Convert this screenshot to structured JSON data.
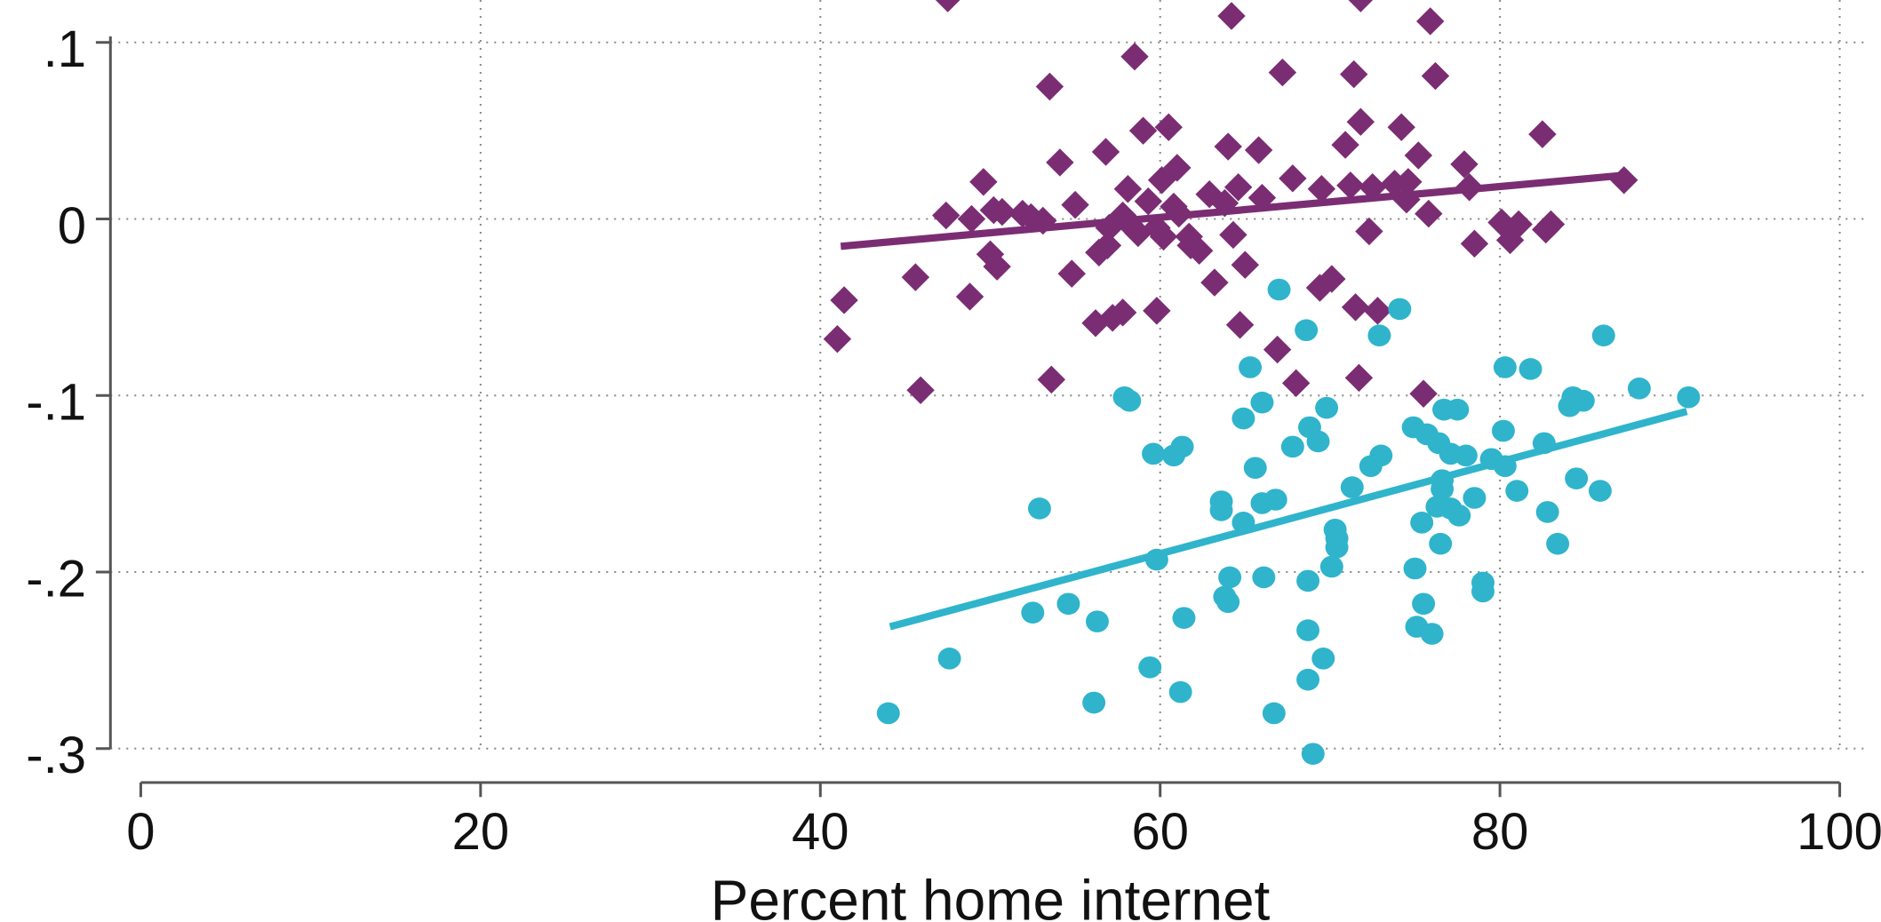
{
  "chart_data": {
    "type": "scatter",
    "title": "",
    "xlabel": "Percent home internet",
    "ylabel": "",
    "xlim": [
      0,
      100
    ],
    "ylim": [
      -0.3,
      0.1
    ],
    "x_ticks": [
      {
        "value": 0,
        "label": "0"
      },
      {
        "value": 20,
        "label": "20"
      },
      {
        "value": 40,
        "label": "40"
      },
      {
        "value": 60,
        "label": "60"
      },
      {
        "value": 80,
        "label": "80"
      },
      {
        "value": 100,
        "label": "100"
      }
    ],
    "y_ticks": [
      {
        "value": 0.1,
        "label": ".1"
      },
      {
        "value": 0,
        "label": "0"
      },
      {
        "value": -0.1,
        "label": "-.1"
      },
      {
        "value": -0.2,
        "label": "-.2"
      },
      {
        "value": -0.3,
        "label": "-.3"
      }
    ],
    "grid": true,
    "legend": "none",
    "series": [
      {
        "marker": "diamond",
        "color": "#7b2d73",
        "points": [
          [
            47.5,
            0.125
          ],
          [
            64.2,
            0.115
          ],
          [
            71.8,
            0.125
          ],
          [
            75.9,
            0.112
          ],
          [
            58.5,
            0.092
          ],
          [
            67.2,
            0.083
          ],
          [
            71.4,
            0.082
          ],
          [
            76.2,
            0.081
          ],
          [
            53.5,
            0.075
          ],
          [
            82.5,
            0.048
          ],
          [
            59.0,
            0.05
          ],
          [
            60.5,
            0.052
          ],
          [
            71.8,
            0.055
          ],
          [
            74.2,
            0.052
          ],
          [
            56.8,
            0.038
          ],
          [
            64.0,
            0.041
          ],
          [
            65.8,
            0.039
          ],
          [
            70.9,
            0.042
          ],
          [
            54.1,
            0.032
          ],
          [
            75.2,
            0.036
          ],
          [
            77.9,
            0.031
          ],
          [
            61.0,
            0.029
          ],
          [
            49.6,
            0.021
          ],
          [
            60.1,
            0.022
          ],
          [
            67.8,
            0.023
          ],
          [
            72.5,
            0.018
          ],
          [
            73.8,
            0.02
          ],
          [
            74.6,
            0.021
          ],
          [
            78.2,
            0.018
          ],
          [
            87.3,
            0.022
          ],
          [
            58.1,
            0.017
          ],
          [
            62.9,
            0.014
          ],
          [
            64.6,
            0.018
          ],
          [
            69.5,
            0.017
          ],
          [
            71.2,
            0.019
          ],
          [
            66.0,
            0.012
          ],
          [
            55.0,
            0.008
          ],
          [
            74.5,
            0.011
          ],
          [
            63.8,
            0.009
          ],
          [
            51.9,
            0.003
          ],
          [
            59.3,
            0.01
          ],
          [
            60.8,
            0.007
          ],
          [
            47.4,
            0.002
          ],
          [
            50.2,
            0.005
          ],
          [
            50.7,
            0.004
          ],
          [
            53.1,
            -0.001
          ],
          [
            57.8,
            0.002
          ],
          [
            61.1,
            0.003
          ],
          [
            75.8,
            0.003
          ],
          [
            48.9,
            0.0
          ],
          [
            52.4,
            0.001
          ],
          [
            58.2,
            -0.003
          ],
          [
            80.1,
            -0.002
          ],
          [
            81.1,
            -0.003
          ],
          [
            57.0,
            -0.005
          ],
          [
            59.8,
            -0.005
          ],
          [
            58.7,
            -0.008
          ],
          [
            60.2,
            -0.01
          ],
          [
            61.7,
            -0.01
          ],
          [
            72.3,
            -0.007
          ],
          [
            82.7,
            -0.006
          ],
          [
            83.0,
            -0.003
          ],
          [
            56.9,
            -0.015
          ],
          [
            61.8,
            -0.015
          ],
          [
            78.5,
            -0.014
          ],
          [
            80.6,
            -0.012
          ],
          [
            50.0,
            -0.02
          ],
          [
            56.4,
            -0.019
          ],
          [
            64.3,
            -0.009
          ],
          [
            50.4,
            -0.027
          ],
          [
            62.3,
            -0.018
          ],
          [
            65.0,
            -0.026
          ],
          [
            54.8,
            -0.031
          ],
          [
            63.2,
            -0.036
          ],
          [
            70.1,
            -0.034
          ],
          [
            69.4,
            -0.039
          ],
          [
            45.6,
            -0.033
          ],
          [
            41.4,
            -0.046
          ],
          [
            48.8,
            -0.044
          ],
          [
            57.8,
            -0.053
          ],
          [
            59.8,
            -0.052
          ],
          [
            57.2,
            -0.056
          ],
          [
            56.2,
            -0.059
          ],
          [
            71.5,
            -0.05
          ],
          [
            72.8,
            -0.052
          ],
          [
            64.7,
            -0.06
          ],
          [
            41.0,
            -0.068
          ],
          [
            66.9,
            -0.074
          ],
          [
            53.6,
            -0.091
          ],
          [
            68.0,
            -0.093
          ],
          [
            71.7,
            -0.09
          ],
          [
            45.9,
            -0.097
          ],
          [
            75.5,
            -0.099
          ]
        ],
        "fit": {
          "x": [
            41.2,
            87.0
          ],
          "y": [
            -0.0155,
            0.0245
          ]
        }
      },
      {
        "marker": "circle",
        "color": "#2fb4cc",
        "points": [
          [
            67.0,
            -0.04
          ],
          [
            74.1,
            -0.051
          ],
          [
            68.6,
            -0.063
          ],
          [
            72.9,
            -0.066
          ],
          [
            86.1,
            -0.066
          ],
          [
            65.3,
            -0.084
          ],
          [
            80.3,
            -0.084
          ],
          [
            81.8,
            -0.085
          ],
          [
            57.9,
            -0.101
          ],
          [
            58.2,
            -0.103
          ],
          [
            66.0,
            -0.104
          ],
          [
            84.3,
            -0.101
          ],
          [
            84.9,
            -0.103
          ],
          [
            84.1,
            -0.106
          ],
          [
            88.2,
            -0.096
          ],
          [
            91.1,
            -0.101
          ],
          [
            64.9,
            -0.113
          ],
          [
            69.8,
            -0.107
          ],
          [
            76.7,
            -0.108
          ],
          [
            77.5,
            -0.108
          ],
          [
            68.8,
            -0.118
          ],
          [
            74.9,
            -0.118
          ],
          [
            80.2,
            -0.12
          ],
          [
            69.3,
            -0.126
          ],
          [
            67.8,
            -0.129
          ],
          [
            75.7,
            -0.122
          ],
          [
            76.4,
            -0.127
          ],
          [
            82.6,
            -0.127
          ],
          [
            59.6,
            -0.133
          ],
          [
            60.8,
            -0.134
          ],
          [
            61.3,
            -0.129
          ],
          [
            73.0,
            -0.134
          ],
          [
            77.1,
            -0.133
          ],
          [
            78.0,
            -0.134
          ],
          [
            79.5,
            -0.136
          ],
          [
            65.6,
            -0.141
          ],
          [
            72.4,
            -0.14
          ],
          [
            80.3,
            -0.14
          ],
          [
            76.6,
            -0.148
          ],
          [
            84.5,
            -0.147
          ],
          [
            71.3,
            -0.152
          ],
          [
            76.6,
            -0.153
          ],
          [
            81.0,
            -0.154
          ],
          [
            85.9,
            -0.154
          ],
          [
            63.6,
            -0.16
          ],
          [
            66.0,
            -0.161
          ],
          [
            66.8,
            -0.159
          ],
          [
            78.5,
            -0.158
          ],
          [
            52.9,
            -0.164
          ],
          [
            63.6,
            -0.165
          ],
          [
            76.3,
            -0.163
          ],
          [
            77.1,
            -0.164
          ],
          [
            82.8,
            -0.166
          ],
          [
            64.9,
            -0.172
          ],
          [
            75.4,
            -0.172
          ],
          [
            77.6,
            -0.168
          ],
          [
            70.3,
            -0.176
          ],
          [
            70.4,
            -0.181
          ],
          [
            76.5,
            -0.184
          ],
          [
            83.4,
            -0.184
          ],
          [
            70.4,
            -0.186
          ],
          [
            59.8,
            -0.193
          ],
          [
            70.1,
            -0.197
          ],
          [
            75.0,
            -0.198
          ],
          [
            64.1,
            -0.203
          ],
          [
            66.1,
            -0.203
          ],
          [
            68.7,
            -0.205
          ],
          [
            79.0,
            -0.206
          ],
          [
            79.0,
            -0.211
          ],
          [
            63.8,
            -0.214
          ],
          [
            64.0,
            -0.217
          ],
          [
            54.6,
            -0.218
          ],
          [
            75.5,
            -0.218
          ],
          [
            52.5,
            -0.223
          ],
          [
            56.3,
            -0.228
          ],
          [
            61.4,
            -0.226
          ],
          [
            75.1,
            -0.231
          ],
          [
            76.0,
            -0.235
          ],
          [
            68.7,
            -0.233
          ],
          [
            47.6,
            -0.249
          ],
          [
            69.6,
            -0.249
          ],
          [
            59.4,
            -0.254
          ],
          [
            68.7,
            -0.261
          ],
          [
            61.2,
            -0.268
          ],
          [
            56.1,
            -0.274
          ],
          [
            44.0,
            -0.28
          ],
          [
            66.7,
            -0.28
          ],
          [
            69.0,
            -0.303
          ]
        ],
        "fit": {
          "x": [
            44.1,
            91.0
          ],
          "y": [
            -0.231,
            -0.109
          ]
        }
      }
    ]
  }
}
